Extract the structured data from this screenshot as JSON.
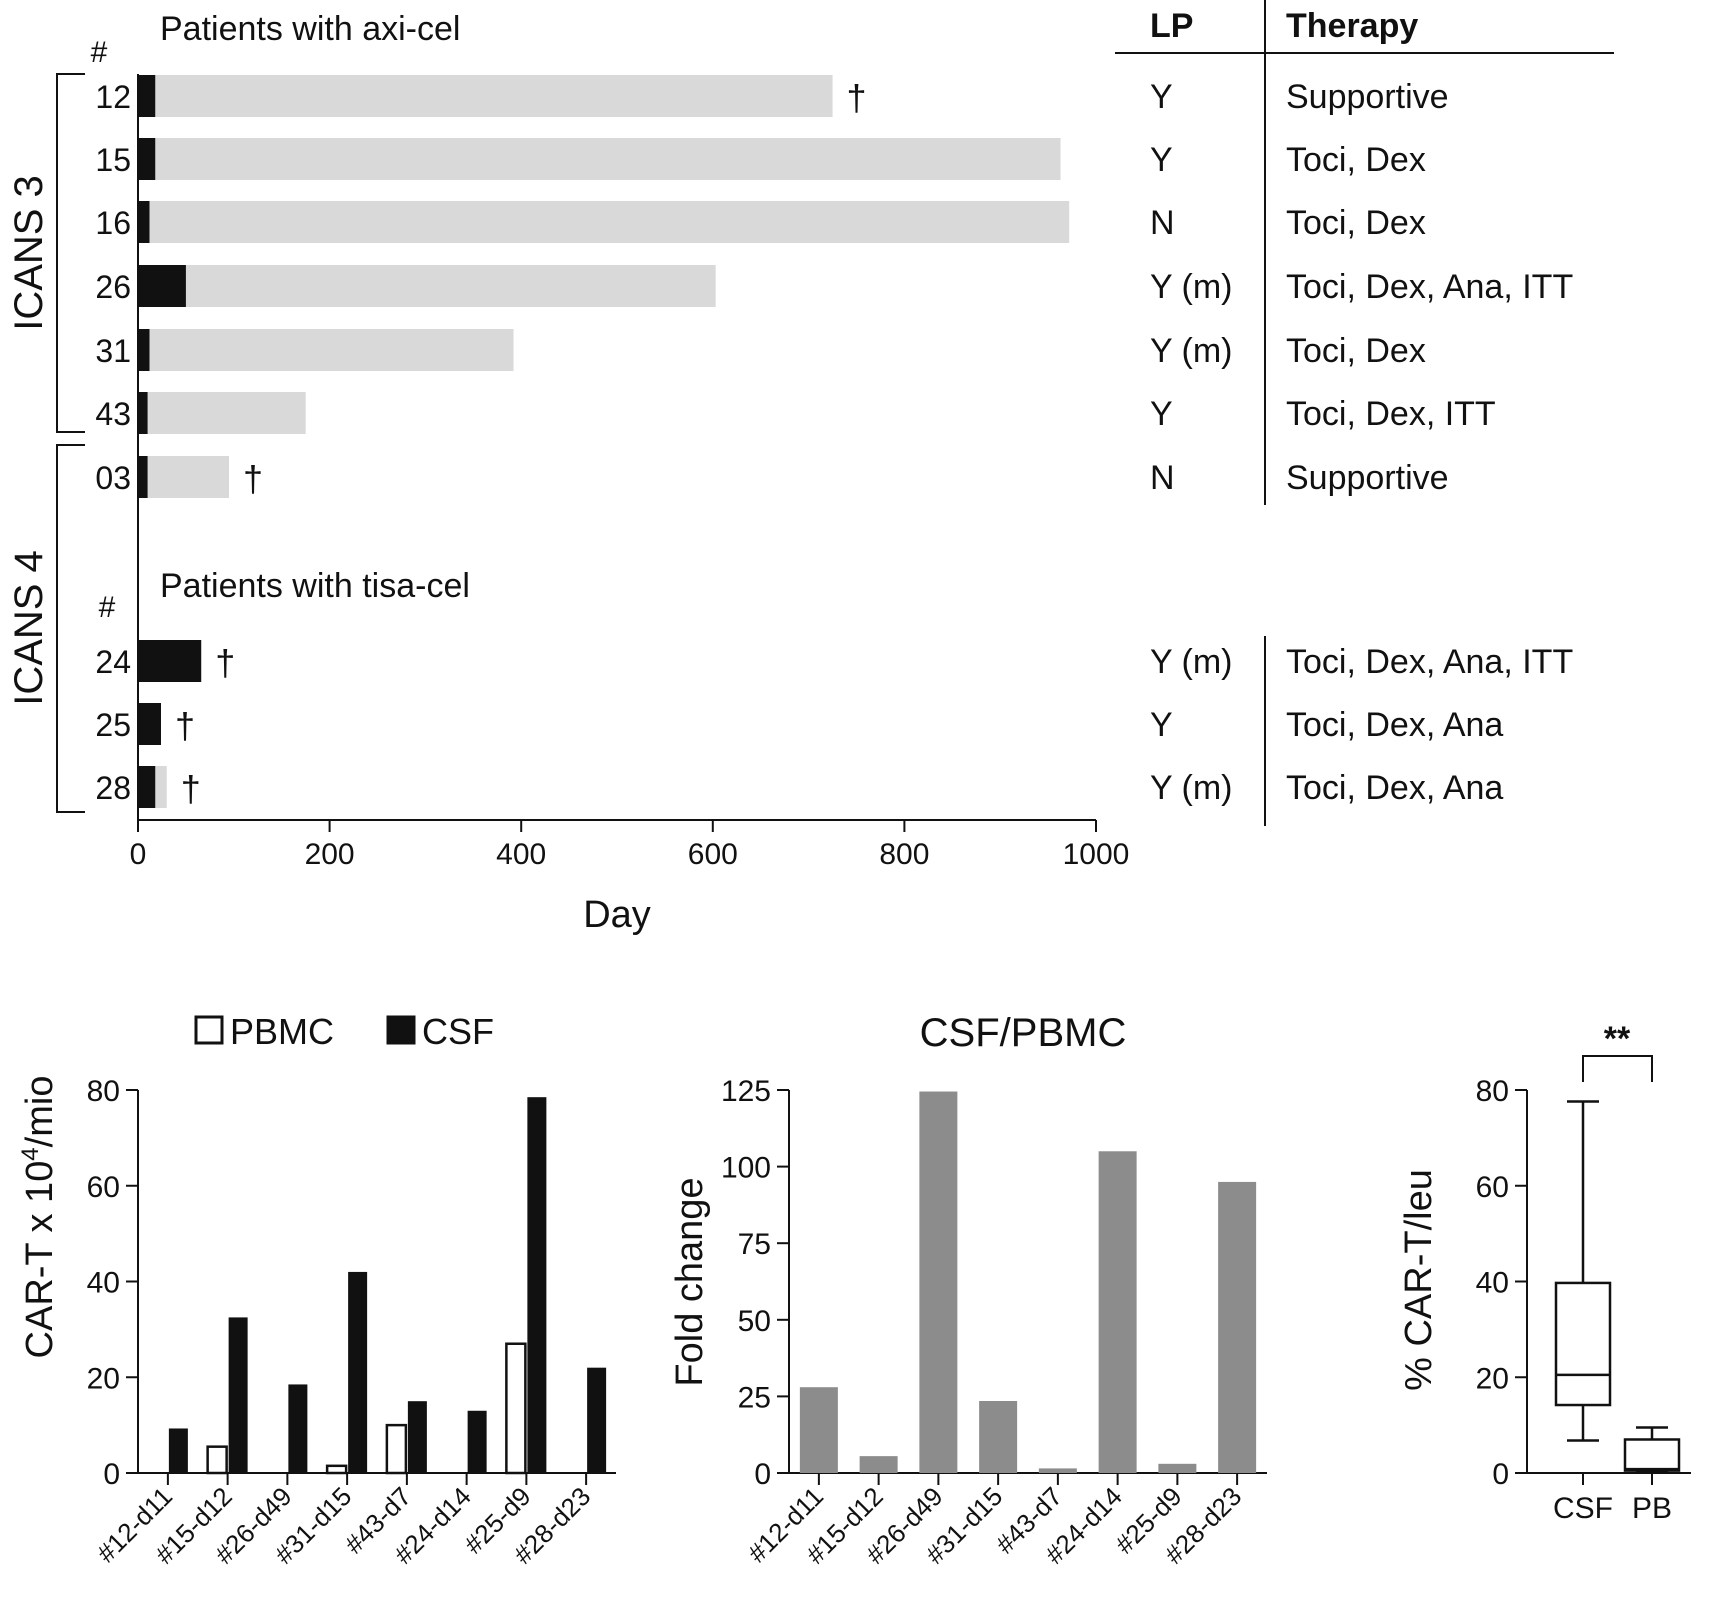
{
  "swimmer": {
    "type": "bar",
    "title_axicel": "Patients with axi-cel",
    "title_tisacel": "Patients with tisa-cel",
    "hash": "#",
    "group_labels": [
      "ICANS 3",
      "ICANS 4"
    ],
    "xlabel": "Day",
    "xlim": [
      0,
      1000
    ],
    "xticks": [
      "0",
      "200",
      "400",
      "600",
      "800",
      "1000"
    ],
    "table_headers": {
      "lp": "LP",
      "therapy": "Therapy"
    },
    "death_marker": "†",
    "patients": [
      {
        "id": "12",
        "group": "ICANS 3",
        "product": "axi-cel",
        "black_end": 18,
        "total": 725,
        "died": true,
        "lp": "Y",
        "therapy": "Supportive"
      },
      {
        "id": "15",
        "group": "ICANS 3",
        "product": "axi-cel",
        "black_end": 18,
        "total": 963,
        "died": false,
        "lp": "Y",
        "therapy": "Toci, Dex"
      },
      {
        "id": "16",
        "group": "ICANS 3",
        "product": "axi-cel",
        "black_end": 12,
        "total": 972,
        "died": false,
        "lp": "N",
        "therapy": "Toci, Dex"
      },
      {
        "id": "26",
        "group": "ICANS 3",
        "product": "axi-cel",
        "black_end": 50,
        "total": 603,
        "died": false,
        "lp": "Y (m)",
        "therapy": "Toci, Dex, Ana, ITT"
      },
      {
        "id": "31",
        "group": "ICANS 3",
        "product": "axi-cel",
        "black_end": 12,
        "total": 392,
        "died": false,
        "lp": "Y (m)",
        "therapy": "Toci, Dex"
      },
      {
        "id": "43",
        "group": "ICANS 3",
        "product": "axi-cel",
        "black_end": 10,
        "total": 175,
        "died": false,
        "lp": "Y",
        "therapy": "Toci, Dex, ITT"
      },
      {
        "id": "03",
        "group": "ICANS 4",
        "product": "axi-cel",
        "black_end": 10,
        "total": 95,
        "died": true,
        "lp": "N",
        "therapy": "Supportive"
      },
      {
        "id": "24",
        "group": "ICANS 4",
        "product": "tisa-cel",
        "black_end": 66,
        "total": 66,
        "died": true,
        "lp": "Y (m)",
        "therapy": "Toci, Dex, Ana, ITT"
      },
      {
        "id": "25",
        "group": "ICANS 4",
        "product": "tisa-cel",
        "black_end": 24,
        "total": 24,
        "died": true,
        "lp": "Y",
        "therapy": "Toci, Dex, Ana"
      },
      {
        "id": "28",
        "group": "ICANS 4",
        "product": "tisa-cel",
        "black_end": 18,
        "total": 30,
        "died": true,
        "lp": "Y (m)",
        "therapy": "Toci, Dex, Ana"
      }
    ]
  },
  "chart_data": [
    {
      "type": "bar",
      "legend": [
        "PBMC",
        "CSF"
      ],
      "ylabel": "CAR-T x 10",
      "ylabel_sup": "4",
      "ylabel_suffix": "/mio",
      "ylim": [
        0,
        80
      ],
      "yticks": [
        "0",
        "20",
        "40",
        "60",
        "80"
      ],
      "categories": [
        "#12-d11",
        "#15-d12",
        "#26-d49",
        "#31-d15",
        "#43-d7",
        "#24-d14",
        "#25-d9",
        "#28-d23"
      ],
      "series": [
        {
          "name": "PBMC",
          "values": [
            0,
            5.5,
            0,
            1.5,
            10,
            0,
            27,
            0
          ]
        },
        {
          "name": "CSF",
          "values": [
            9.3,
            32.5,
            18.5,
            42,
            15,
            13,
            78.5,
            22
          ]
        }
      ]
    },
    {
      "type": "bar",
      "title": "CSF/PBMC",
      "ylabel": "Fold change",
      "ylim": [
        0,
        125
      ],
      "yticks": [
        "0",
        "25",
        "50",
        "75",
        "100",
        "125"
      ],
      "categories": [
        "#12-d11",
        "#15-d12",
        "#26-d49",
        "#31-d15",
        "#43-d7",
        "#24-d14",
        "#25-d9",
        "#28-d23"
      ],
      "values": [
        28,
        5.5,
        124.5,
        23.5,
        1.5,
        105,
        3,
        95
      ]
    },
    {
      "type": "boxplot",
      "ylabel": "% CAR-T/leu",
      "ylim": [
        0,
        80
      ],
      "yticks": [
        "0",
        "20",
        "40",
        "60",
        "80"
      ],
      "categories": [
        "CSF",
        "PB"
      ],
      "boxes": [
        {
          "name": "CSF",
          "min": 6.8,
          "q1": 14.2,
          "median": 20.5,
          "q3": 39.7,
          "max": 77.6
        },
        {
          "name": "PB",
          "min": 0.3,
          "q1": 0.5,
          "median": 0.8,
          "q3": 7.0,
          "max": 9.5
        }
      ],
      "significance": "**"
    }
  ]
}
